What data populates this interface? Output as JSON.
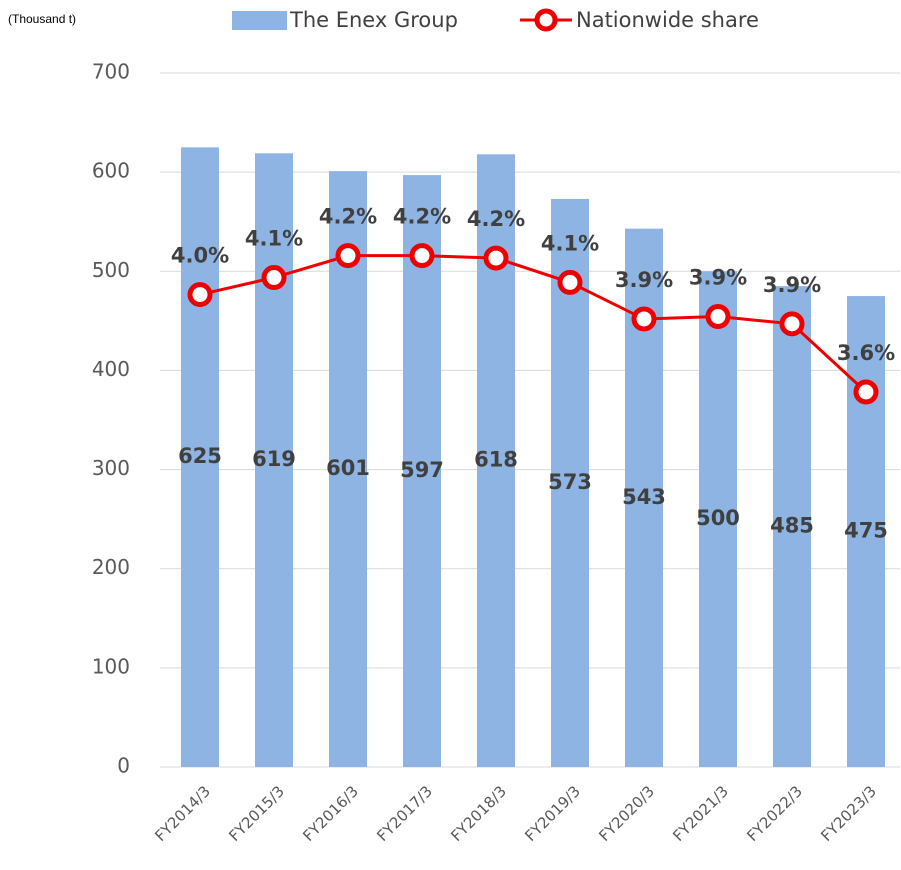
{
  "chart_data": {
    "type": "bar_line",
    "unit_label": "(Thousand t)",
    "categories": [
      "FY2014/3",
      "FY2015/3",
      "FY2016/3",
      "FY2017/3",
      "FY2018/3",
      "FY2019/3",
      "FY2020/3",
      "FY2021/3",
      "FY2022/3",
      "FY2023/3"
    ],
    "series": [
      {
        "name": "The Enex Group",
        "type": "bar",
        "color": "#8eb4e3",
        "values": [
          625,
          619,
          601,
          597,
          618,
          573,
          543,
          500,
          485,
          475
        ]
      },
      {
        "name": "Nationwide share",
        "type": "line",
        "axis": "y2",
        "color": "#ee0000",
        "values": [
          4.04,
          4.11,
          4.2,
          4.2,
          4.19,
          4.09,
          3.94,
          3.95,
          3.92,
          3.64
        ],
        "value_labels": [
          "4.0%",
          "4.1%",
          "4.2%",
          "4.2%",
          "4.2%",
          "4.1%",
          "3.9%",
          "3.9%",
          "3.9%",
          "3.6%"
        ]
      }
    ],
    "ylim": [
      0,
      700
    ],
    "yticks": [
      0,
      100,
      200,
      300,
      400,
      500,
      600,
      700
    ],
    "y2lim": [
      2.1,
      4.95
    ],
    "grid": true,
    "legend": "top"
  }
}
